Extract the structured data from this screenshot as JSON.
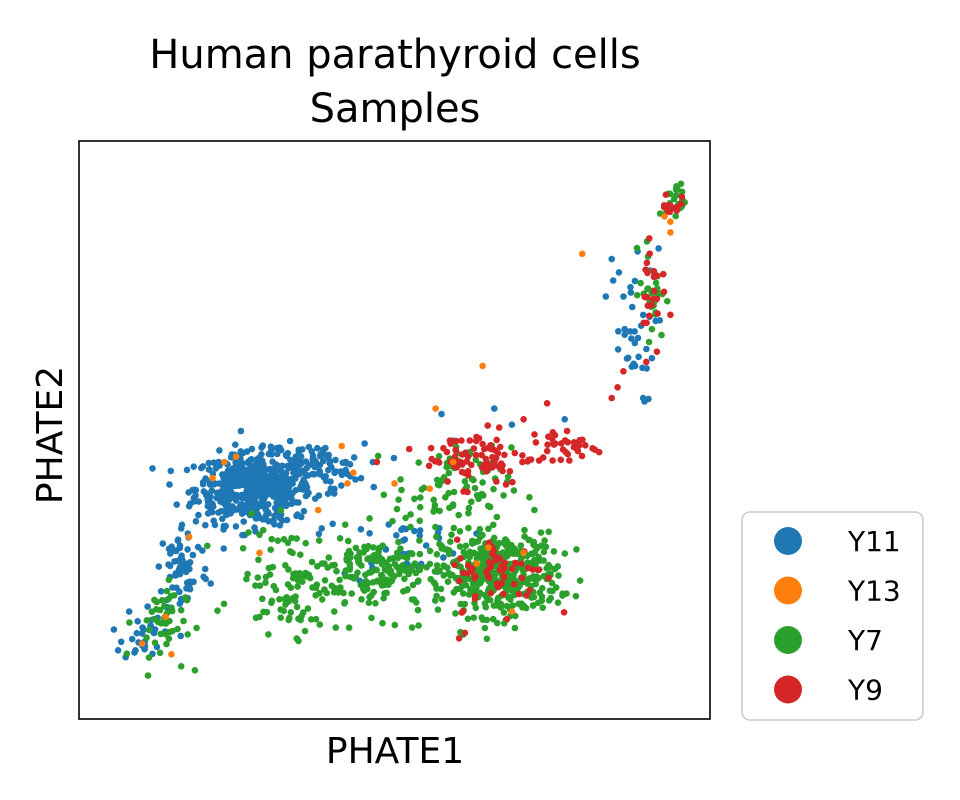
{
  "chart_data": {
    "type": "scatter",
    "title": "Human parathyroid cells",
    "subtitle": "Samples",
    "xlabel": "PHATE1",
    "ylabel": "PHATE2",
    "xlim": [
      0,
      100
    ],
    "ylim": [
      0,
      100
    ],
    "grid": false,
    "ticks_shown": false,
    "legend_position": "outside-lower-right",
    "legend": [
      {
        "name": "Y11",
        "color": "#1f77b4"
      },
      {
        "name": "Y13",
        "color": "#ff7f0e"
      },
      {
        "name": "Y7",
        "color": "#2ca02c"
      },
      {
        "name": "Y9",
        "color": "#d62728"
      }
    ],
    "series": [
      {
        "name": "Y11",
        "color": "#1f77b4",
        "clusters": [
          {
            "cx": 26,
            "cy": 39,
            "rx": 9,
            "ry": 6,
            "n": 520
          },
          {
            "cx": 36,
            "cy": 43,
            "rx": 8,
            "ry": 4,
            "n": 90
          },
          {
            "cx": 14,
            "cy": 24,
            "rx": 4,
            "ry": 8,
            "n": 70
          },
          {
            "cx": 7,
            "cy": 12,
            "rx": 3,
            "ry": 5,
            "n": 30
          },
          {
            "cx": 52,
            "cy": 28,
            "rx": 10,
            "ry": 6,
            "n": 40
          },
          {
            "cx": 90,
            "cy": 68,
            "rx": 4,
            "ry": 12,
            "n": 35
          }
        ],
        "points": [
          [
            96,
            92
          ],
          [
            98,
            95
          ],
          [
            87,
            82
          ],
          [
            86,
            75
          ],
          [
            70,
            51
          ],
          [
            91,
            62
          ],
          [
            95,
            84
          ],
          [
            60,
            48
          ],
          [
            58,
            53
          ],
          [
            67,
            54
          ],
          [
            79,
            52
          ]
        ]
      },
      {
        "name": "Y7",
        "color": "#2ca02c",
        "clusters": [
          {
            "cx": 68,
            "cy": 23,
            "rx": 9,
            "ry": 7,
            "n": 420
          },
          {
            "cx": 48,
            "cy": 23,
            "rx": 10,
            "ry": 7,
            "n": 160
          },
          {
            "cx": 33,
            "cy": 22,
            "rx": 9,
            "ry": 9,
            "n": 110
          },
          {
            "cx": 10,
            "cy": 14,
            "rx": 4,
            "ry": 7,
            "n": 45
          },
          {
            "cx": 60,
            "cy": 39,
            "rx": 9,
            "ry": 7,
            "n": 80
          },
          {
            "cx": 94,
            "cy": 76,
            "rx": 2,
            "ry": 8,
            "n": 30
          },
          {
            "cx": 98,
            "cy": 93,
            "rx": 1.5,
            "ry": 3,
            "n": 25
          }
        ],
        "points": [
          [
            16,
            5
          ],
          [
            8,
            4
          ],
          [
            27,
            15
          ],
          [
            40,
            13
          ],
          [
            53,
            13
          ]
        ]
      },
      {
        "name": "Y9",
        "color": "#d62728",
        "clusters": [
          {
            "cx": 64,
            "cy": 45,
            "rx": 8,
            "ry": 5,
            "n": 80
          },
          {
            "cx": 68,
            "cy": 23,
            "rx": 7,
            "ry": 6,
            "n": 60
          },
          {
            "cx": 79,
            "cy": 47,
            "rx": 6,
            "ry": 3,
            "n": 40
          },
          {
            "cx": 94,
            "cy": 77,
            "rx": 2,
            "ry": 12,
            "n": 25
          },
          {
            "cx": 97,
            "cy": 92,
            "rx": 1.5,
            "ry": 3,
            "n": 12
          }
        ],
        "points": [
          [
            72,
            52
          ],
          [
            76,
            55
          ],
          [
            87,
            56
          ],
          [
            89,
            61
          ],
          [
            88,
            58
          ],
          [
            62,
            12
          ],
          [
            61,
            11
          ],
          [
            47,
            44
          ]
        ]
      },
      {
        "name": "Y13",
        "color": "#ff7f0e",
        "points": [
          [
            82,
            83
          ],
          [
            65,
            62
          ],
          [
            57,
            54
          ],
          [
            56,
            39
          ],
          [
            50,
            40
          ],
          [
            41,
            47
          ],
          [
            42,
            40
          ],
          [
            23,
            45
          ],
          [
            21,
            44
          ],
          [
            19,
            41
          ],
          [
            37,
            35
          ],
          [
            43,
            42
          ],
          [
            15,
            30
          ],
          [
            11,
            15
          ],
          [
            12,
            8
          ],
          [
            7,
            10
          ],
          [
            64,
            25
          ],
          [
            66,
            28
          ],
          [
            72,
            27
          ],
          [
            70,
            16
          ],
          [
            60,
            44
          ],
          [
            27,
            27
          ],
          [
            96,
            90
          ],
          [
            97,
            89
          ],
          [
            97,
            87
          ]
        ]
      }
    ]
  }
}
